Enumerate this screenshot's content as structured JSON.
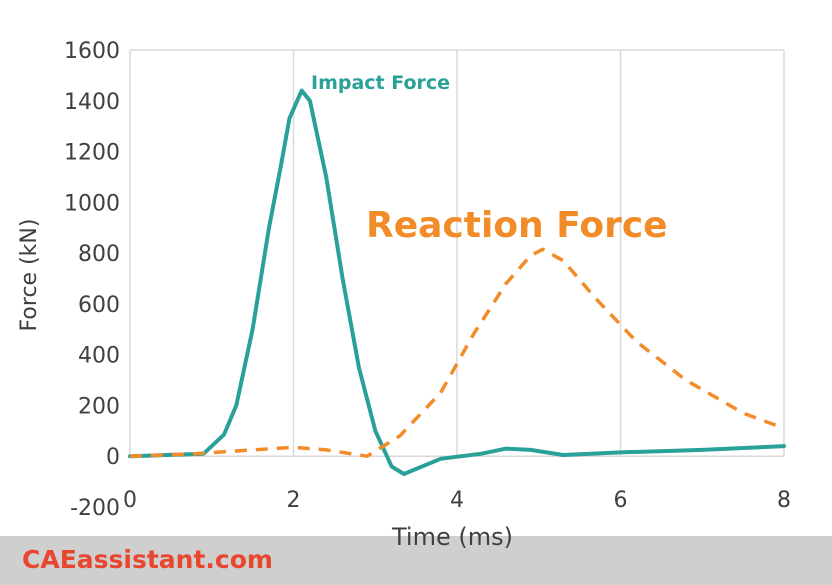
{
  "chart_data": {
    "type": "line",
    "xlabel": "Time (ms)",
    "ylabel": "Force (kN)",
    "xlim": [
      0,
      8
    ],
    "ylim": [
      -200,
      1600
    ],
    "xticks": [
      "0",
      "2",
      "4",
      "6",
      "8"
    ],
    "yticks": [
      "-200",
      "0",
      "200",
      "400",
      "600",
      "800",
      "1000",
      "1200",
      "1400",
      "1600"
    ],
    "grid": "vertical",
    "annotations": {
      "impact": "Impact Force",
      "reaction": "Reaction Force"
    },
    "series": [
      {
        "name": "Impact Force",
        "style": "solid",
        "color": "#2aa198",
        "x": [
          0,
          0.9,
          1.15,
          1.3,
          1.5,
          1.7,
          1.85,
          1.95,
          2.1,
          2.2,
          2.4,
          2.6,
          2.8,
          3.0,
          3.2,
          3.35,
          3.8,
          4.3,
          4.6,
          4.9,
          5.3,
          6.0,
          7.0,
          8.0
        ],
        "y": [
          0,
          10,
          85,
          200,
          500,
          900,
          1150,
          1330,
          1440,
          1400,
          1100,
          700,
          350,
          100,
          -40,
          -70,
          -10,
          10,
          30,
          25,
          5,
          15,
          25,
          40
        ]
      },
      {
        "name": "Reaction Force",
        "style": "dashed",
        "color": "#f28c28",
        "x": [
          0,
          0.8,
          1.5,
          2.0,
          2.4,
          2.9,
          3.3,
          3.8,
          4.2,
          4.6,
          4.9,
          5.05,
          5.3,
          5.7,
          6.2,
          6.8,
          7.5,
          8.0
        ],
        "y": [
          0,
          10,
          25,
          35,
          25,
          0,
          80,
          250,
          480,
          680,
          790,
          815,
          770,
          620,
          450,
          300,
          170,
          110
        ]
      }
    ]
  },
  "footer": {
    "brand": "CAEassistant.com",
    "brand_color": "#e8462f",
    "background": "#cfcfcf"
  }
}
